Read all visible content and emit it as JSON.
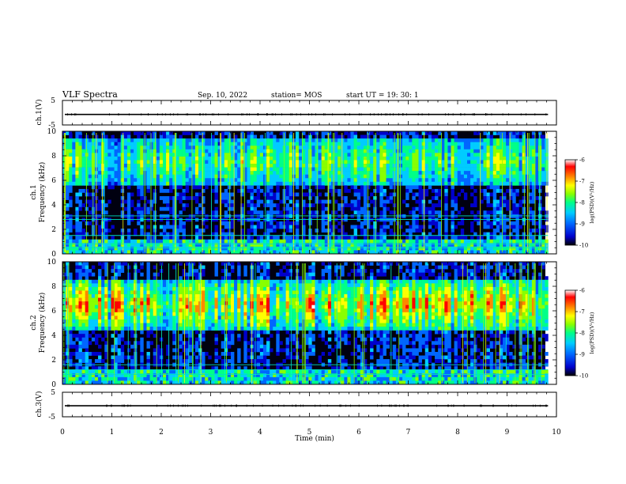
{
  "header": {
    "title": "VLF Spectra",
    "date": "Sep. 10, 2022",
    "station": "station= MOS",
    "start": "start  UT =   19: 30: 1"
  },
  "chart_data": {
    "type": "heatmap",
    "x_axis": {
      "label": "Time  (min)",
      "range": [
        0,
        10
      ],
      "ticks": [
        "0",
        "1",
        "2",
        "3",
        "4",
        "5",
        "6",
        "7",
        "8",
        "9",
        "10"
      ],
      "data_end_min": 9.83
    },
    "panels": [
      {
        "id": "ch1-waveform",
        "ylabel": "ch.1(V)",
        "ylim": [
          -5,
          5
        ],
        "ticks": [
          "5",
          "-5"
        ],
        "trace_level_v": -0.7,
        "color": "#000000"
      },
      {
        "id": "ch1-spectrogram",
        "ylabel_top": "ch.1",
        "ylabel": "Frequency  (kHz)",
        "ylim": [
          0,
          10
        ],
        "ticks": [
          "0",
          "2",
          "4",
          "6",
          "8",
          "10"
        ],
        "dominant_band_khz": [
          5.5,
          9.5
        ],
        "horizontal_lines_khz": [
          0.5,
          0.8,
          1.5,
          2.8,
          3.1
        ],
        "colorbar": {
          "label": "log(PSD)(V²/Hz)",
          "ticks": [
            "-6",
            "-7",
            "-8",
            "-9",
            "-10"
          ],
          "range": [
            -10,
            -6
          ]
        }
      },
      {
        "id": "ch2-spectrogram",
        "ylabel_top": "ch.2",
        "ylabel": "Frequency  (kHz)",
        "ylim": [
          0,
          10
        ],
        "ticks": [
          "0",
          "2",
          "4",
          "6",
          "8",
          "10"
        ],
        "dominant_band_khz": [
          4.5,
          8.5
        ],
        "horizontal_lines_khz": [
          0.8,
          1.2,
          1.6
        ],
        "colorbar": {
          "label": "log(PSD)(V²/Hz)",
          "ticks": [
            "-6",
            "-7",
            "-8",
            "-9",
            "-10"
          ],
          "range": [
            -10,
            -6
          ]
        }
      },
      {
        "id": "ch3-waveform",
        "ylabel": "ch.3(V)",
        "ylim": [
          -5,
          5
        ],
        "ticks": [
          "5",
          "-5"
        ],
        "trace_level_v": -0.5,
        "color": "#000000"
      }
    ],
    "colormap": [
      "#000000",
      "#0000cc",
      "#0066ff",
      "#00ccff",
      "#00ff88",
      "#88ff00",
      "#ffff00",
      "#ff8800",
      "#ff0000",
      "#ffffff"
    ]
  }
}
